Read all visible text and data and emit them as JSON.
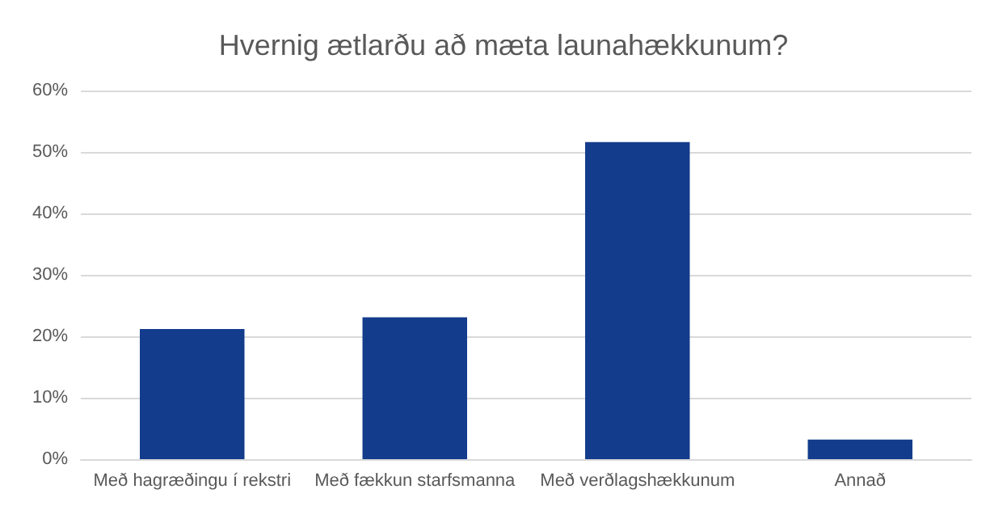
{
  "chart_data": {
    "type": "bar",
    "title": "Hvernig ætlarðu að mæta launahækkunum?",
    "categories": [
      "Með hagræðingu í rekstri",
      "Með fækkun starfsmanna",
      "Með verðlagshækkunum",
      "Annað"
    ],
    "values": [
      21.2,
      23.1,
      51.6,
      3.2
    ],
    "color": "#143c8c",
    "ylim": [
      0,
      60
    ],
    "yticks": [
      {
        "value": 0,
        "label": "0%"
      },
      {
        "value": 10,
        "label": "10%"
      },
      {
        "value": 20,
        "label": "20%"
      },
      {
        "value": 30,
        "label": "30%"
      },
      {
        "value": 40,
        "label": "40%"
      },
      {
        "value": 50,
        "label": "50%"
      },
      {
        "value": 60,
        "label": "60%"
      }
    ],
    "grid": "y"
  }
}
